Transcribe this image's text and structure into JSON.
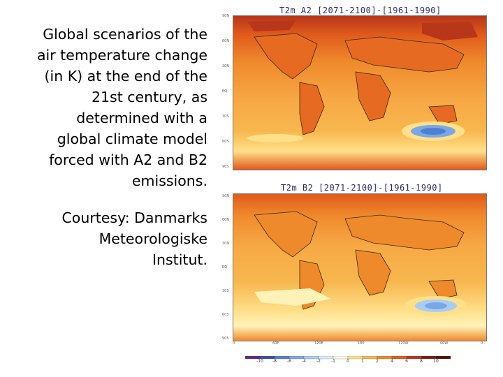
{
  "caption": {
    "lines": [
      "Global scenarios of the",
      "air temperature change",
      "(in K) at the end of the",
      "21st century, as",
      "determined with a",
      "global climate model",
      "forced with A2 and B2",
      "emissions."
    ],
    "courtesy_lines": [
      "Courtesy: Danmarks",
      "Meteorologiske",
      "Institut."
    ]
  },
  "maps": [
    {
      "title": "T2m  A2  [2071-2100]-[1961-1990]",
      "scenario": "A2"
    },
    {
      "title": "T2m  B2  [2071-2100]-[1961-1990]",
      "scenario": "B2"
    }
  ],
  "axes": {
    "lat_ticks_top": [
      "90N",
      "60N",
      "30N",
      "EQ",
      "30S",
      "60S",
      "90S"
    ],
    "lat_ticks_bottom": [
      "90N",
      "60N",
      "30N",
      "EQ",
      "30S",
      "60S",
      "90S"
    ],
    "lon_ticks": [
      "0",
      "60E",
      "120E",
      "180",
      "120W",
      "60W",
      "0"
    ]
  },
  "colorbar": {
    "labels": [
      "-10",
      "-8",
      "-6",
      "-4",
      "-2",
      "-1",
      "0",
      "1",
      "2",
      "4",
      "6",
      "8",
      "10"
    ],
    "colors": [
      "#5b2a86",
      "#3b4fa8",
      "#4f7fd0",
      "#7aa7e6",
      "#a9cdf2",
      "#dcebf8",
      "#fffde0",
      "#ffe08a",
      "#f7b74e",
      "#ef8a2c",
      "#e05a1c",
      "#b8361a",
      "#7a1f10",
      "#4d1208"
    ]
  }
}
